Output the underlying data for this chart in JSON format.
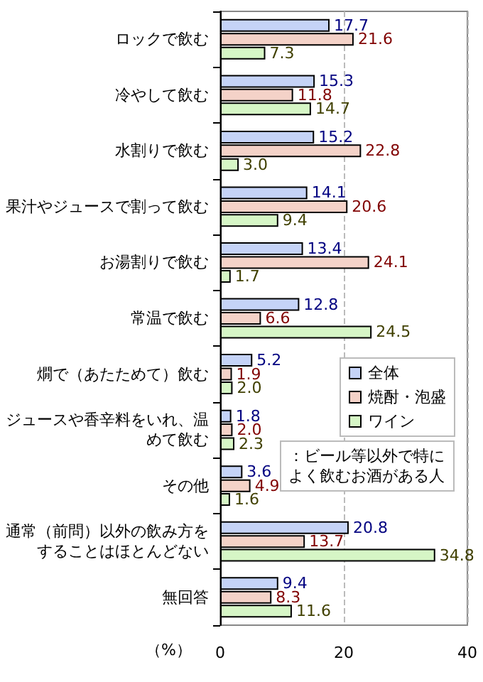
{
  "chart_data": {
    "type": "bar",
    "orientation": "horizontal",
    "xlabel": "（%）",
    "categories": [
      "ロックで飲む",
      "冷やして飲む",
      "水割りで飲む",
      "果汁やジュースで割って飲む",
      "お湯割りで飲む",
      "常温で飲む",
      "燗で（あたためて）飲む",
      "ジュースや香辛料をいれ、温めて飲む",
      "その他",
      "通常（前問）以外の飲み方をすることはほとんどない",
      "無回答"
    ],
    "series": [
      {
        "name": "全体",
        "color": "#c5d3f7",
        "values": [
          17.7,
          15.3,
          15.2,
          14.1,
          13.4,
          12.8,
          5.2,
          1.8,
          3.6,
          20.8,
          9.4
        ],
        "value_labels": [
          "17.7",
          "15.3",
          "15.2",
          "14.1",
          "13.4",
          "12.8",
          "5.2",
          "1.8",
          "3.6",
          "20.8",
          "9.4"
        ]
      },
      {
        "name": "焼酎・泡盛",
        "color": "#f4d2c8",
        "values": [
          21.6,
          11.8,
          22.8,
          20.6,
          24.1,
          6.6,
          1.9,
          2.0,
          4.9,
          13.7,
          8.3
        ],
        "value_labels": [
          "21.6",
          "11.8",
          "22.8",
          "20.6",
          "24.1",
          "6.6",
          "1.9",
          "2.0",
          "4.9",
          "13.7",
          "8.3"
        ]
      },
      {
        "name": "ワイン",
        "color": "#d6f6c6",
        "values": [
          7.3,
          14.7,
          3.0,
          9.4,
          1.7,
          24.5,
          2.0,
          2.3,
          1.6,
          34.8,
          11.6
        ],
        "value_labels": [
          "7.3",
          "14.7",
          "3.0",
          "9.4",
          "1.7",
          "24.5",
          "2.0",
          "2.3",
          "1.6",
          "34.8",
          "11.6"
        ]
      }
    ],
    "xlim": [
      0,
      40
    ],
    "xticks": [
      0,
      20,
      40
    ],
    "grid": "x",
    "legend": "right",
    "annotations": [
      "：ビール等以外で特によく飲むお酒がある人"
    ]
  }
}
